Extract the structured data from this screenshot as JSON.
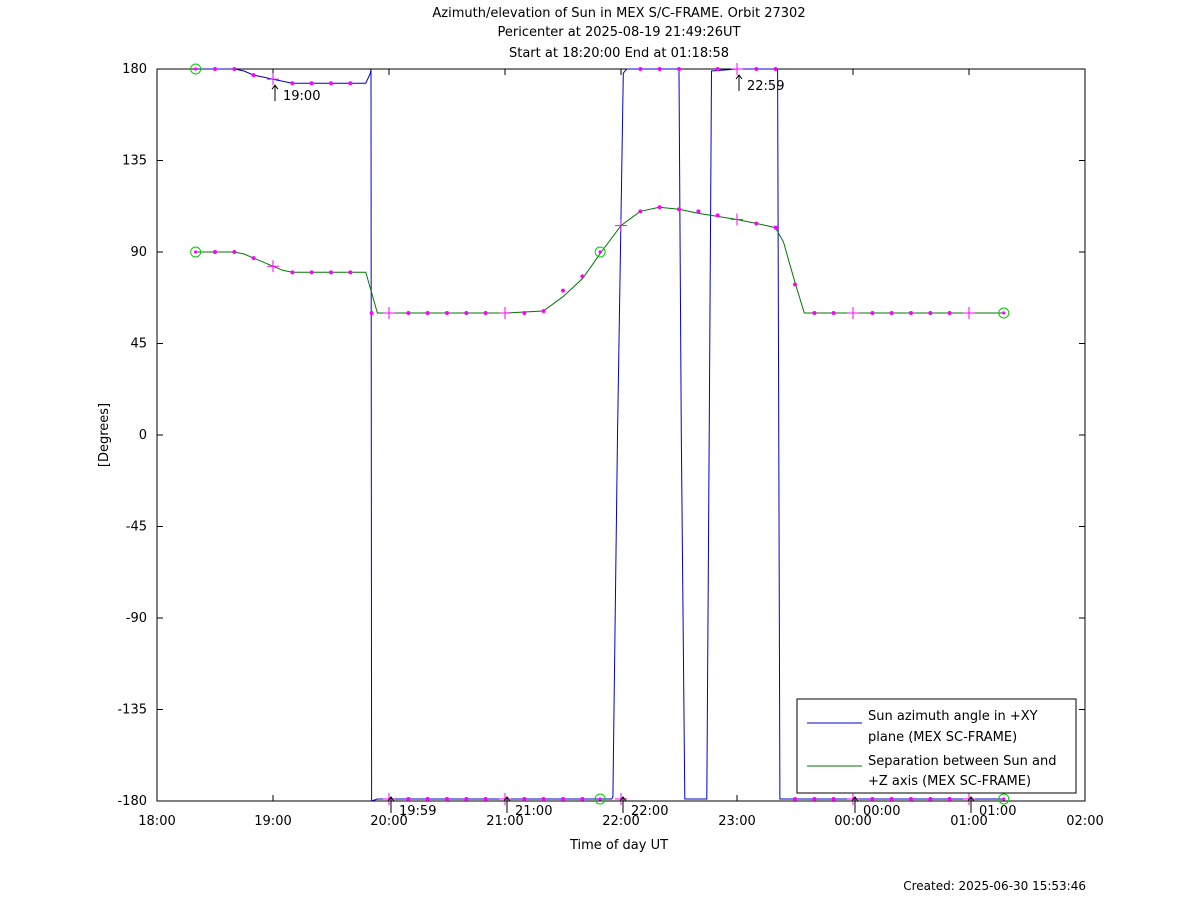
{
  "title_lines": [
    "Azimuth/elevation of Sun in MEX S/C-FRAME.  Orbit 27302",
    "Pericenter at 2025-08-19 21:49:26UT",
    "Start at 18:20:00 End at 01:18:58"
  ],
  "footer": "Created: 2025-06-30 15:53:46",
  "colors": {
    "azimuth": "#0000cc",
    "separation": "#007700",
    "marker": "#ff00ff",
    "circle": "#00cc00"
  },
  "chart_data": {
    "type": "line",
    "xlabel": "Time of day UT",
    "ylabel": "[Degrees]",
    "x_unit": "hours since 18:00",
    "xlim": [
      0,
      8
    ],
    "ylim": [
      -180,
      180
    ],
    "grid": false,
    "legend_position": "bottom-right",
    "x_ticks": [
      {
        "value": 0,
        "label": "18:00"
      },
      {
        "value": 1,
        "label": "19:00"
      },
      {
        "value": 2,
        "label": "20:00"
      },
      {
        "value": 3,
        "label": "21:00"
      },
      {
        "value": 4,
        "label": "22:00"
      },
      {
        "value": 5,
        "label": "23:00"
      },
      {
        "value": 6,
        "label": "00:00"
      },
      {
        "value": 7,
        "label": "01:00"
      },
      {
        "value": 8,
        "label": "02:00"
      }
    ],
    "y_ticks": [
      180,
      135,
      90,
      45,
      0,
      -45,
      -90,
      -135,
      -180
    ],
    "series": [
      {
        "name": "Sun azimuth angle in +XY plane (MEX SC-FRAME)",
        "legend_lines": [
          "Sun azimuth angle in +XY",
          "plane (MEX SC-FRAME)"
        ],
        "color_key": "azimuth",
        "points": [
          [
            0.333,
            180
          ],
          [
            0.5,
            180
          ],
          [
            0.667,
            180
          ],
          [
            0.75,
            179
          ],
          [
            0.833,
            177
          ],
          [
            0.917,
            176
          ],
          [
            1.0,
            175
          ],
          [
            1.083,
            174
          ],
          [
            1.167,
            173
          ],
          [
            1.333,
            173
          ],
          [
            1.5,
            173
          ],
          [
            1.667,
            173
          ],
          [
            1.8,
            173
          ],
          [
            1.84,
            178
          ],
          [
            1.845,
            180
          ],
          [
            1.85,
            -180
          ],
          [
            1.9,
            -179
          ],
          [
            2.0,
            -179
          ],
          [
            2.167,
            -179
          ],
          [
            2.5,
            -179
          ],
          [
            3.0,
            -179
          ],
          [
            3.5,
            -179
          ],
          [
            3.92,
            -179
          ],
          [
            3.93,
            -178
          ],
          [
            3.97,
            0
          ],
          [
            4.02,
            178
          ],
          [
            4.05,
            180
          ],
          [
            4.5,
            180
          ],
          [
            4.5,
            178
          ],
          [
            4.52,
            0
          ],
          [
            4.55,
            -179
          ],
          [
            4.74,
            -179
          ],
          [
            4.76,
            0
          ],
          [
            4.78,
            179
          ],
          [
            5.0,
            180
          ],
          [
            5.25,
            180
          ],
          [
            5.35,
            180
          ],
          [
            5.37,
            -179
          ],
          [
            5.5,
            -179
          ],
          [
            6.0,
            -179
          ],
          [
            6.5,
            -179
          ],
          [
            7.0,
            -179
          ],
          [
            7.3,
            -179
          ]
        ]
      },
      {
        "name": "Separation between Sun and +Z axis (MEX SC-FRAME)",
        "legend_lines": [
          "Separation between Sun and",
          "+Z axis (MEX SC-FRAME)"
        ],
        "color_key": "separation",
        "points": [
          [
            0.333,
            90
          ],
          [
            0.5,
            90
          ],
          [
            0.667,
            90
          ],
          [
            0.75,
            89
          ],
          [
            0.833,
            87
          ],
          [
            0.917,
            85
          ],
          [
            1.0,
            83
          ],
          [
            1.083,
            81
          ],
          [
            1.167,
            80
          ],
          [
            1.333,
            80
          ],
          [
            1.5,
            80
          ],
          [
            1.667,
            80
          ],
          [
            1.8,
            80
          ],
          [
            1.85,
            70
          ],
          [
            1.9,
            60
          ],
          [
            2.0,
            60
          ],
          [
            2.5,
            60
          ],
          [
            3.0,
            60
          ],
          [
            3.33,
            61
          ],
          [
            3.5,
            68
          ],
          [
            3.67,
            77
          ],
          [
            3.83,
            90
          ],
          [
            4.0,
            103
          ],
          [
            4.167,
            110
          ],
          [
            4.33,
            112
          ],
          [
            4.5,
            111
          ],
          [
            4.67,
            109
          ],
          [
            5.0,
            106
          ],
          [
            5.17,
            104
          ],
          [
            5.33,
            102
          ],
          [
            5.4,
            95
          ],
          [
            5.5,
            75
          ],
          [
            5.58,
            60
          ],
          [
            6.0,
            60
          ],
          [
            6.5,
            60
          ],
          [
            7.0,
            60
          ],
          [
            7.3,
            60
          ]
        ]
      }
    ],
    "markers": [
      {
        "x": 0.333,
        "y": 180,
        "type": "circle"
      },
      {
        "x": 0.5,
        "y": 180,
        "type": "dot"
      },
      {
        "x": 0.667,
        "y": 180,
        "type": "dot"
      },
      {
        "x": 0.833,
        "y": 177,
        "type": "dot"
      },
      {
        "x": 1.0,
        "y": 175,
        "type": "cross"
      },
      {
        "x": 1.167,
        "y": 173,
        "type": "dot"
      },
      {
        "x": 1.333,
        "y": 173,
        "type": "dot"
      },
      {
        "x": 1.5,
        "y": 173,
        "type": "dot"
      },
      {
        "x": 1.667,
        "y": 173,
        "type": "dot"
      },
      {
        "x": 2.0,
        "y": -179,
        "type": "cross"
      },
      {
        "x": 2.167,
        "y": -179,
        "type": "dot"
      },
      {
        "x": 2.333,
        "y": -179,
        "type": "dot"
      },
      {
        "x": 2.5,
        "y": -179,
        "type": "dot"
      },
      {
        "x": 2.667,
        "y": -179,
        "type": "dot"
      },
      {
        "x": 2.833,
        "y": -179,
        "type": "dot"
      },
      {
        "x": 3.0,
        "y": -179,
        "type": "cross"
      },
      {
        "x": 3.167,
        "y": -179,
        "type": "dot"
      },
      {
        "x": 3.333,
        "y": -179,
        "type": "dot"
      },
      {
        "x": 3.5,
        "y": -179,
        "type": "dot"
      },
      {
        "x": 3.667,
        "y": -179,
        "type": "dot"
      },
      {
        "x": 3.82,
        "y": -179,
        "type": "circle"
      },
      {
        "x": 4.0,
        "y": -179,
        "type": "cross"
      },
      {
        "x": 4.167,
        "y": 180,
        "type": "dot"
      },
      {
        "x": 4.333,
        "y": 180,
        "type": "dot"
      },
      {
        "x": 4.5,
        "y": 180,
        "type": "dot"
      },
      {
        "x": 4.833,
        "y": 180,
        "type": "dot"
      },
      {
        "x": 5.0,
        "y": 180,
        "type": "cross"
      },
      {
        "x": 5.167,
        "y": 180,
        "type": "dot"
      },
      {
        "x": 5.333,
        "y": 180,
        "type": "dot"
      },
      {
        "x": 5.5,
        "y": -179,
        "type": "dot"
      },
      {
        "x": 5.667,
        "y": -179,
        "type": "dot"
      },
      {
        "x": 5.833,
        "y": -179,
        "type": "dot"
      },
      {
        "x": 6.0,
        "y": -179,
        "type": "cross"
      },
      {
        "x": 6.167,
        "y": -179,
        "type": "dot"
      },
      {
        "x": 6.333,
        "y": -179,
        "type": "dot"
      },
      {
        "x": 6.5,
        "y": -179,
        "type": "dot"
      },
      {
        "x": 6.667,
        "y": -179,
        "type": "dot"
      },
      {
        "x": 6.833,
        "y": -179,
        "type": "dot"
      },
      {
        "x": 7.0,
        "y": -179,
        "type": "cross"
      },
      {
        "x": 7.3,
        "y": -179,
        "type": "circle"
      },
      {
        "x": 0.333,
        "y": 90,
        "type": "circle"
      },
      {
        "x": 0.5,
        "y": 90,
        "type": "dot"
      },
      {
        "x": 0.667,
        "y": 90,
        "type": "dot"
      },
      {
        "x": 0.833,
        "y": 87,
        "type": "dot"
      },
      {
        "x": 1.0,
        "y": 83,
        "type": "cross"
      },
      {
        "x": 1.167,
        "y": 80,
        "type": "dot"
      },
      {
        "x": 1.333,
        "y": 80,
        "type": "dot"
      },
      {
        "x": 1.5,
        "y": 80,
        "type": "dot"
      },
      {
        "x": 1.667,
        "y": 80,
        "type": "dot"
      },
      {
        "x": 1.85,
        "y": 60,
        "type": "dot"
      },
      {
        "x": 2.0,
        "y": 60,
        "type": "cross"
      },
      {
        "x": 2.167,
        "y": 60,
        "type": "dot"
      },
      {
        "x": 2.333,
        "y": 60,
        "type": "dot"
      },
      {
        "x": 2.5,
        "y": 60,
        "type": "dot"
      },
      {
        "x": 2.667,
        "y": 60,
        "type": "dot"
      },
      {
        "x": 2.833,
        "y": 60,
        "type": "dot"
      },
      {
        "x": 3.0,
        "y": 60,
        "type": "cross"
      },
      {
        "x": 3.167,
        "y": 60,
        "type": "dot"
      },
      {
        "x": 3.333,
        "y": 61,
        "type": "dot"
      },
      {
        "x": 3.5,
        "y": 71,
        "type": "dot"
      },
      {
        "x": 3.667,
        "y": 78,
        "type": "dot"
      },
      {
        "x": 3.82,
        "y": 90,
        "type": "circle"
      },
      {
        "x": 4.0,
        "y": 103,
        "type": "cross"
      },
      {
        "x": 4.167,
        "y": 110,
        "type": "dot"
      },
      {
        "x": 4.333,
        "y": 112,
        "type": "dot"
      },
      {
        "x": 4.5,
        "y": 111,
        "type": "dot"
      },
      {
        "x": 4.667,
        "y": 110,
        "type": "dot"
      },
      {
        "x": 4.833,
        "y": 108,
        "type": "dot"
      },
      {
        "x": 5.0,
        "y": 106,
        "type": "cross"
      },
      {
        "x": 5.167,
        "y": 104,
        "type": "dot"
      },
      {
        "x": 5.333,
        "y": 102,
        "type": "dot"
      },
      {
        "x": 5.5,
        "y": 74,
        "type": "dot"
      },
      {
        "x": 5.667,
        "y": 60,
        "type": "dot"
      },
      {
        "x": 5.833,
        "y": 60,
        "type": "dot"
      },
      {
        "x": 6.0,
        "y": 60,
        "type": "cross"
      },
      {
        "x": 6.167,
        "y": 60,
        "type": "dot"
      },
      {
        "x": 6.333,
        "y": 60,
        "type": "dot"
      },
      {
        "x": 6.5,
        "y": 60,
        "type": "dot"
      },
      {
        "x": 6.667,
        "y": 60,
        "type": "dot"
      },
      {
        "x": 6.833,
        "y": 60,
        "type": "dot"
      },
      {
        "x": 7.0,
        "y": 60,
        "type": "cross"
      },
      {
        "x": 7.3,
        "y": 60,
        "type": "circle"
      }
    ],
    "annotations": [
      {
        "x": 1.0,
        "y": 175,
        "label": "19:00",
        "side": "below"
      },
      {
        "x": 5.0,
        "y": 180,
        "label": "22:59",
        "side": "below"
      },
      {
        "x": 2.0,
        "y": -179,
        "label": "19:59",
        "side": "above"
      },
      {
        "x": 3.0,
        "y": -179,
        "label": "21:00",
        "side": "above"
      },
      {
        "x": 4.0,
        "y": -179,
        "label": "22:00",
        "side": "above"
      },
      {
        "x": 6.0,
        "y": -179,
        "label": "00:00",
        "side": "above"
      },
      {
        "x": 7.0,
        "y": -179,
        "label": "01:00",
        "side": "above"
      }
    ]
  }
}
